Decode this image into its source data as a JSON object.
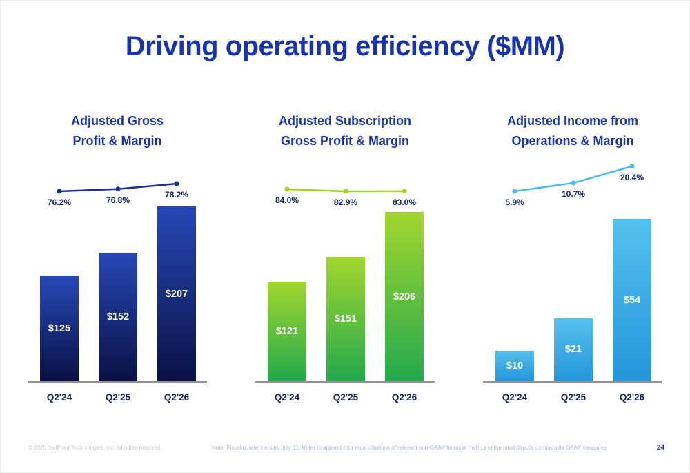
{
  "slide": {
    "title": "Driving operating efficiency ($MM)",
    "page_number": "24",
    "footer_left": "© 2025 SailPoint Technologies, Inc. All rights reserved.",
    "footer_note": "Note: Fiscal quarters ended July 31.  Refer to appendix for reconciliations of relevant non-GAAP financial metrics to the most directly comparable GAAP measures"
  },
  "colors": {
    "title_blue": "#1733ad",
    "label_navy": "#0d2060",
    "axis_gray": "#8d929b"
  },
  "chart_data": [
    {
      "type": "bar",
      "title_line1": "Adjusted Gross",
      "title_line2": "Profit & Margin",
      "categories": [
        "Q2'24",
        "Q2'25",
        "Q2'26"
      ],
      "series": [
        {
          "name": "Adjusted Gross Profit ($MM)",
          "kind": "bar",
          "values": [
            125,
            152,
            207
          ],
          "labels": [
            "$125",
            "$152",
            "$207"
          ]
        },
        {
          "name": "Adjusted Gross Margin (%)",
          "kind": "line",
          "values": [
            76.2,
            76.8,
            78.2
          ],
          "labels": [
            "76.2%",
            "76.8%",
            "78.2%"
          ]
        }
      ],
      "bar_gradient": [
        "#2648b6",
        "#0a1145"
      ],
      "line_color": "#1b2f8f",
      "grid": false,
      "legend": "none"
    },
    {
      "type": "bar",
      "title_line1": "Adjusted Subscription",
      "title_line2": "Gross Profit & Margin",
      "categories": [
        "Q2'24",
        "Q2'25",
        "Q2'26"
      ],
      "series": [
        {
          "name": "Adjusted Subscription Gross Profit ($MM)",
          "kind": "bar",
          "values": [
            121,
            151,
            206
          ],
          "labels": [
            "$121",
            "$151",
            "$206"
          ]
        },
        {
          "name": "Adjusted Subscription Gross Margin (%)",
          "kind": "line",
          "values": [
            84.0,
            82.9,
            83.0
          ],
          "labels": [
            "84.0%",
            "82.9%",
            "83.0%"
          ]
        }
      ],
      "bar_gradient": [
        "#a2d62e",
        "#23a94d"
      ],
      "line_color": "#a4d321",
      "grid": false,
      "legend": "none"
    },
    {
      "type": "bar",
      "title_line1": "Adjusted Income from",
      "title_line2": "Operations & Margin",
      "categories": [
        "Q2'24",
        "Q2'25",
        "Q2'26"
      ],
      "series": [
        {
          "name": "Adjusted Income from Operations ($MM)",
          "kind": "bar",
          "values": [
            10,
            21,
            54
          ],
          "labels": [
            "$10",
            "$21",
            "$54"
          ]
        },
        {
          "name": "Adjusted Operating Margin (%)",
          "kind": "line",
          "values": [
            5.9,
            10.7,
            20.4
          ],
          "labels": [
            "5.9%",
            "10.7%",
            "20.4%"
          ]
        }
      ],
      "bar_gradient": [
        "#55c1ee",
        "#2496da"
      ],
      "line_color": "#4cb9ea",
      "grid": false,
      "legend": "none"
    }
  ]
}
